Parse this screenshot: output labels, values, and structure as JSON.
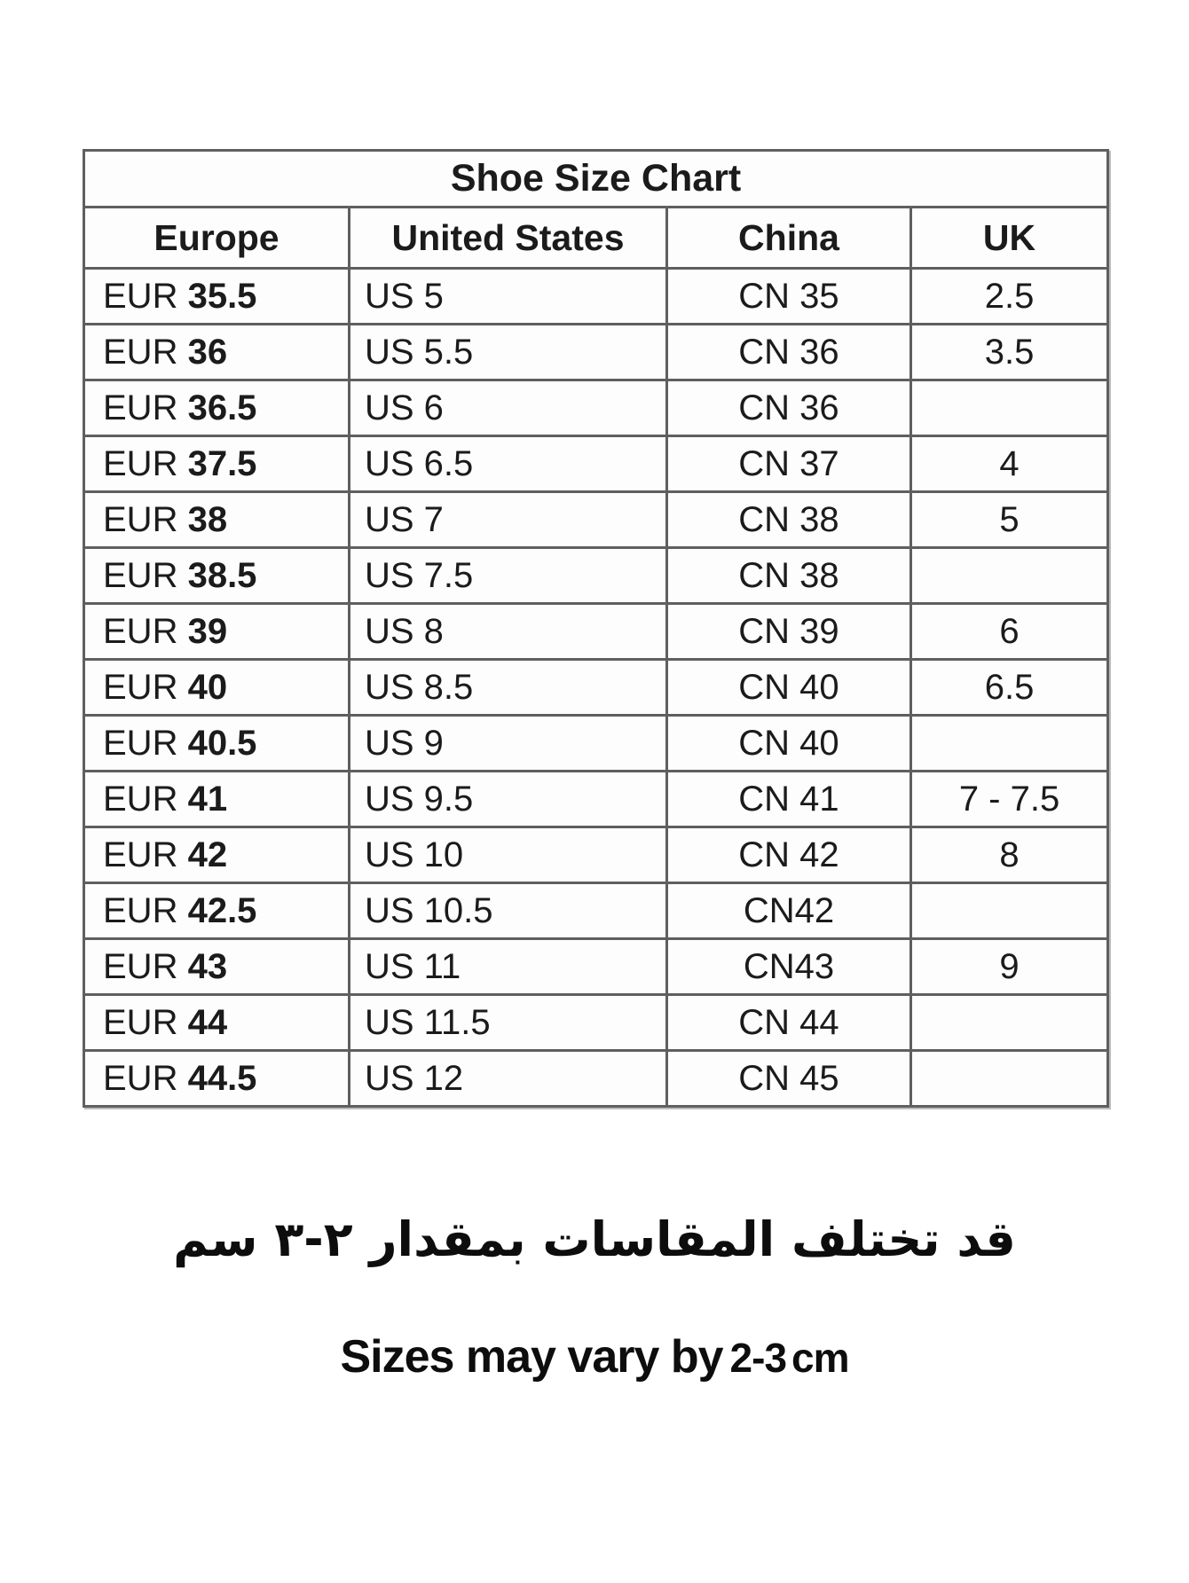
{
  "table": {
    "title": "Shoe Size Chart",
    "columns": [
      "Europe",
      "United States",
      "China",
      "UK"
    ],
    "rows": [
      {
        "eur_prefix": "EUR",
        "eur": "35.5",
        "us": "US 5",
        "cn": "CN 35",
        "uk": "2.5"
      },
      {
        "eur_prefix": "EUR",
        "eur": "36",
        "us": "US 5.5",
        "cn": "CN 36",
        "uk": "3.5"
      },
      {
        "eur_prefix": "EUR",
        "eur": "36.5",
        "us": "US 6",
        "cn": "CN 36",
        "uk": ""
      },
      {
        "eur_prefix": "EUR",
        "eur": "37.5",
        "us": "US 6.5",
        "cn": "CN 37",
        "uk": "4"
      },
      {
        "eur_prefix": "EUR",
        "eur": "38",
        "us": "US 7",
        "cn": "CN 38",
        "uk": "5"
      },
      {
        "eur_prefix": "EUR",
        "eur": "38.5",
        "us": "US 7.5",
        "cn": "CN 38",
        "uk": ""
      },
      {
        "eur_prefix": "EUR",
        "eur": "39",
        "us": "US 8",
        "cn": "CN 39",
        "uk": "6"
      },
      {
        "eur_prefix": "EUR",
        "eur": "40",
        "us": "US 8.5",
        "cn": "CN 40",
        "uk": "6.5"
      },
      {
        "eur_prefix": "EUR",
        "eur": "40.5",
        "us": "US 9",
        "cn": "CN 40",
        "uk": ""
      },
      {
        "eur_prefix": "EUR",
        "eur": "41",
        "us": "US 9.5",
        "cn": "CN 41",
        "uk": "7 - 7.5"
      },
      {
        "eur_prefix": "EUR",
        "eur": "42",
        "us": "US 10",
        "cn": "CN 42",
        "uk": "8"
      },
      {
        "eur_prefix": "EUR",
        "eur": "42.5",
        "us": "US 10.5",
        "cn": "CN42",
        "uk": ""
      },
      {
        "eur_prefix": "EUR",
        "eur": "43",
        "us": "US 11",
        "cn": "CN43",
        "uk": "9"
      },
      {
        "eur_prefix": "EUR",
        "eur": "44",
        "us": "US 11.5",
        "cn": "CN 44",
        "uk": ""
      },
      {
        "eur_prefix": "EUR",
        "eur": "44.5",
        "us": "US 12",
        "cn": "CN 45",
        "uk": ""
      }
    ]
  },
  "notes": {
    "arabic": "قد تختلف المقاسات بمقدار ٢-٣ سم",
    "english_prefix": "Sizes may vary by",
    "english_range": "2-3",
    "english_unit": "cm"
  },
  "colors": {
    "text": "#1b1b1b",
    "table_border": "#5f5f5f",
    "background": "#ffffff"
  }
}
